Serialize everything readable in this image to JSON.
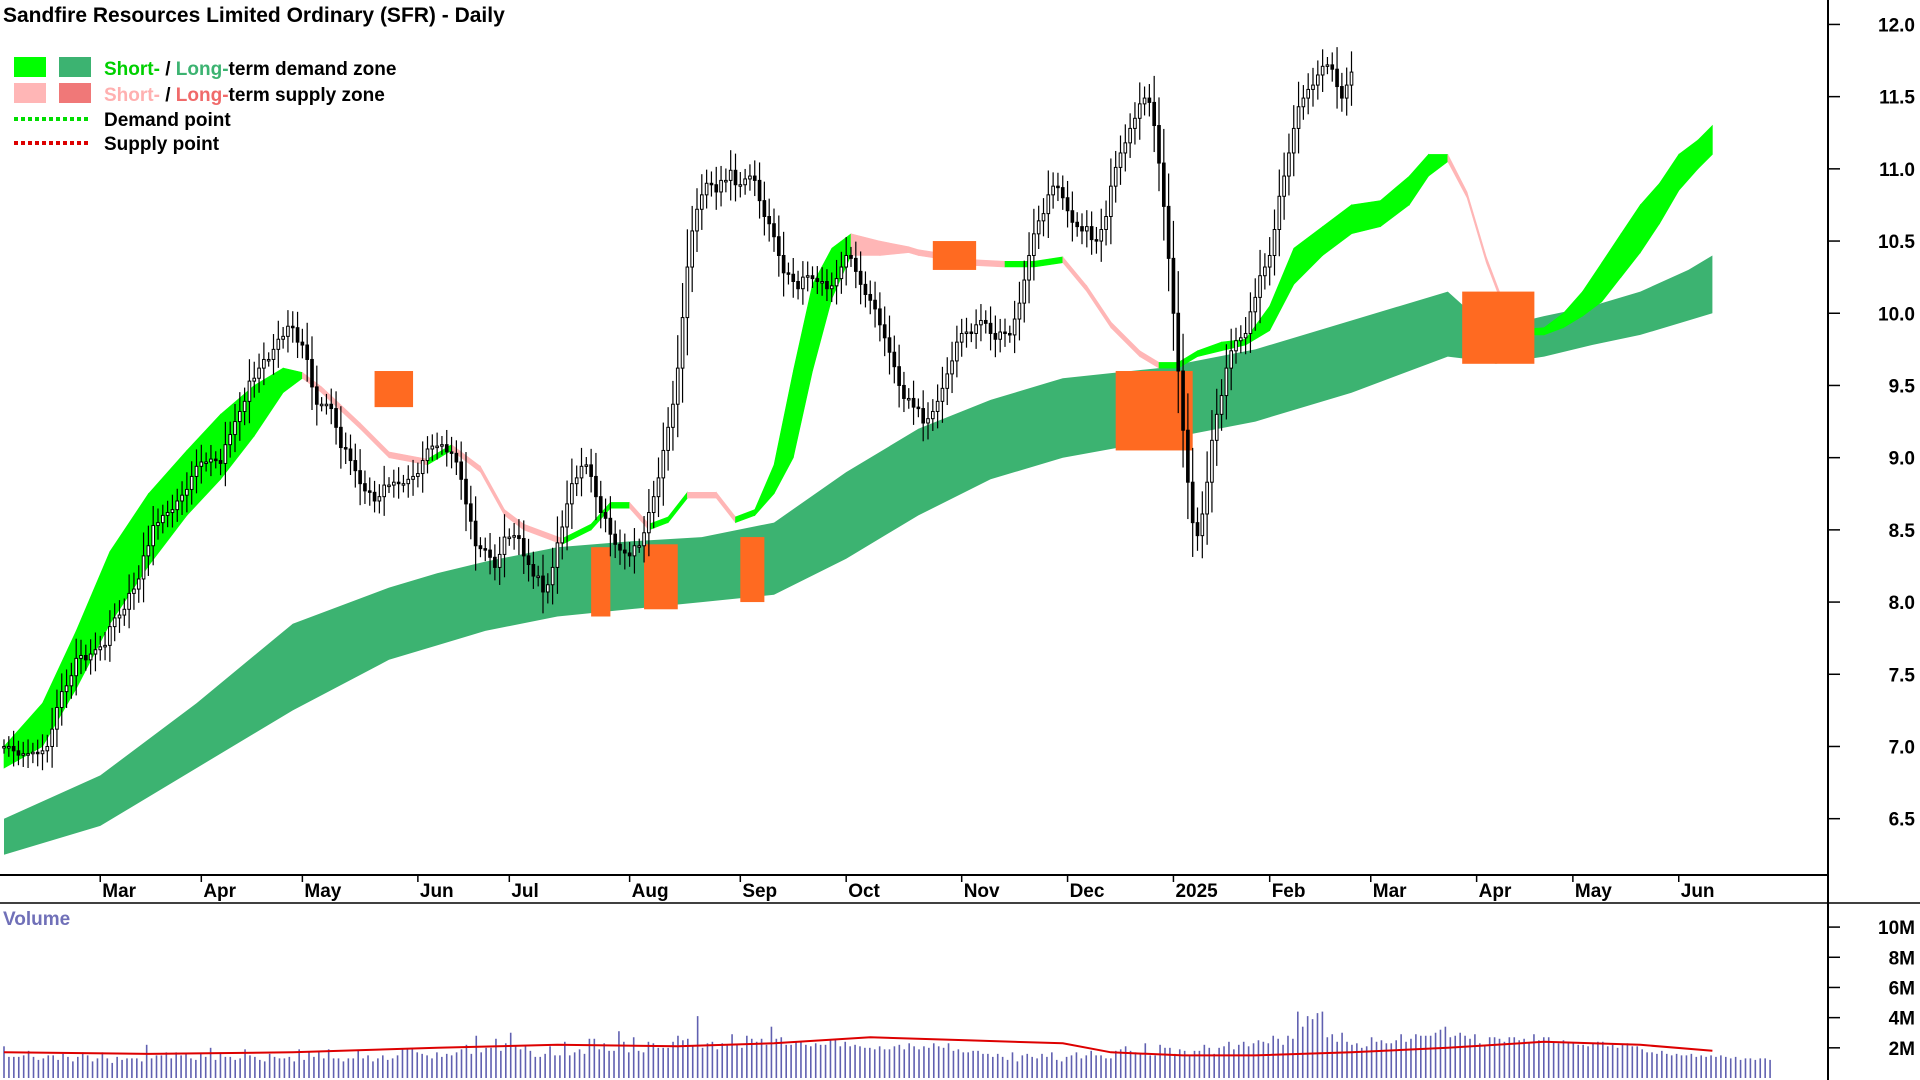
{
  "chart_data": {
    "type": "candlestick",
    "title": "Sandfire Resources Limited Ordinary (SFR) - Daily",
    "price_axis": {
      "ylim": [
        6.2,
        12.1
      ],
      "ticks": [
        "6.5",
        "7.0",
        "7.5",
        "8.0",
        "8.5",
        "9.0",
        "9.5",
        "10.0",
        "10.5",
        "11.0",
        "11.5",
        "12.0"
      ]
    },
    "x_axis": {
      "xlim": [
        0,
        368
      ],
      "month_labels": [
        "Mar",
        "Apr",
        "May",
        "Jun",
        "Jul",
        "Aug",
        "Sep",
        "Oct",
        "Nov",
        "Dec",
        "2025",
        "Feb",
        "Mar",
        "Apr",
        "May",
        "Jun"
      ],
      "month_positions": [
        20,
        41,
        62,
        86,
        105,
        130,
        153,
        175,
        199,
        221,
        243,
        263,
        284,
        306,
        326,
        348
      ]
    },
    "legend": {
      "position": "top-left",
      "demand_label": [
        "Short-",
        " / ",
        "Long-",
        "term demand zone"
      ],
      "supply_label": [
        "Short-",
        " / ",
        "Long-",
        "term supply zone"
      ],
      "demand_point": "Demand point",
      "supply_point": "Supply point"
    },
    "colors": {
      "short_demand": "#00ff00",
      "long_demand": "#3cb371",
      "short_supply": "#ffb6b6",
      "long_supply": "#f07878",
      "overlap": "#ff6a21",
      "demand_point": "#00dd00",
      "supply_point": "#dd0000",
      "volume_bar": "#6060b0",
      "volume_avg": "#dd0000"
    },
    "short_term_zone": {
      "x": [
        0,
        8,
        15,
        22,
        30,
        38,
        45,
        52,
        58,
        62,
        66,
        74,
        80,
        88,
        93,
        99,
        104,
        108,
        116,
        122,
        126,
        130,
        134,
        138,
        142,
        148,
        152,
        156,
        160,
        164,
        168,
        172,
        176,
        182,
        188,
        190,
        194,
        198,
        202,
        208,
        214,
        220,
        225,
        230,
        236,
        240,
        244,
        248,
        253,
        258,
        263,
        268,
        274,
        280,
        286,
        292,
        296,
        300,
        304,
        308,
        312,
        316,
        320,
        324,
        328,
        332,
        336,
        340,
        344,
        348,
        352,
        355
      ],
      "upper": [
        7.0,
        7.3,
        7.8,
        8.35,
        8.75,
        9.05,
        9.3,
        9.5,
        9.62,
        9.55,
        9.45,
        9.2,
        9.0,
        8.95,
        9.05,
        8.9,
        8.6,
        8.5,
        8.4,
        8.5,
        8.65,
        8.65,
        8.5,
        8.55,
        8.75,
        8.72,
        8.55,
        8.6,
        8.95,
        9.6,
        10.2,
        10.45,
        10.55,
        10.5,
        10.45,
        10.42,
        10.4,
        10.36,
        10.33,
        10.32,
        10.32,
        10.35,
        10.15,
        9.9,
        9.7,
        9.62,
        9.62,
        9.72,
        9.8,
        9.8,
        10.05,
        10.45,
        10.6,
        10.75,
        10.78,
        10.95,
        11.1,
        11.1,
        10.8,
        10.35,
        10.0,
        9.85,
        9.9,
        10.0,
        10.15,
        10.35,
        10.55,
        10.75,
        10.9,
        11.1,
        11.2,
        11.3
      ],
      "lower": [
        6.85,
        7.0,
        7.4,
        7.85,
        8.25,
        8.6,
        8.85,
        9.15,
        9.45,
        9.55,
        9.45,
        9.2,
        9.0,
        8.95,
        9.05,
        8.9,
        8.6,
        8.5,
        8.4,
        8.5,
        8.65,
        8.65,
        8.5,
        8.55,
        8.72,
        8.72,
        8.55,
        8.6,
        8.75,
        9.0,
        9.6,
        10.1,
        10.4,
        10.4,
        10.42,
        10.4,
        10.38,
        10.35,
        10.33,
        10.32,
        10.32,
        10.35,
        10.15,
        9.9,
        9.7,
        9.62,
        9.62,
        9.7,
        9.74,
        9.78,
        9.88,
        10.2,
        10.4,
        10.55,
        10.6,
        10.75,
        10.95,
        11.05,
        10.8,
        10.35,
        10.0,
        9.85,
        9.85,
        9.9,
        9.98,
        10.08,
        10.25,
        10.42,
        10.62,
        10.85,
        11.0,
        11.1
      ]
    },
    "long_term_zone": {
      "x": [
        0,
        20,
        40,
        60,
        80,
        90,
        100,
        115,
        130,
        145,
        160,
        175,
        190,
        205,
        220,
        240,
        260,
        280,
        300,
        305,
        310,
        320,
        330,
        340,
        350,
        355
      ],
      "upper": [
        6.5,
        6.8,
        7.3,
        7.85,
        8.1,
        8.2,
        8.28,
        8.38,
        8.42,
        8.45,
        8.55,
        8.9,
        9.2,
        9.4,
        9.55,
        9.62,
        9.75,
        9.95,
        10.15,
        10.0,
        9.9,
        9.98,
        10.05,
        10.15,
        10.3,
        10.4
      ],
      "lower": [
        6.25,
        6.45,
        6.85,
        7.25,
        7.6,
        7.7,
        7.8,
        7.9,
        7.95,
        8.0,
        8.05,
        8.3,
        8.6,
        8.85,
        9.0,
        9.12,
        9.25,
        9.45,
        9.7,
        9.68,
        9.65,
        9.7,
        9.78,
        9.85,
        9.95,
        10.0
      ]
    },
    "overlap_zones": [
      {
        "x": [
          122,
          126
        ],
        "lower": 7.9,
        "upper": 8.38
      },
      {
        "x": [
          133,
          140
        ],
        "lower": 7.95,
        "upper": 8.4
      },
      {
        "x": [
          153,
          158
        ],
        "lower": 8.0,
        "upper": 8.45
      },
      {
        "x": [
          231,
          247
        ],
        "lower": 9.05,
        "upper": 9.6
      },
      {
        "x": [
          303,
          318
        ],
        "lower": 9.65,
        "upper": 10.15
      },
      {
        "x": [
          77,
          85
        ],
        "lower": 9.35,
        "upper": 9.6
      },
      {
        "x": [
          193,
          202
        ],
        "lower": 10.3,
        "upper": 10.5
      }
    ],
    "series": [
      {
        "name": "price",
        "values": [
          7.0,
          7.0,
          6.97,
          6.94,
          6.95,
          6.95,
          6.96,
          6.95,
          6.97,
          7.0,
          7.12,
          7.27,
          7.38,
          7.42,
          7.49,
          7.61,
          7.63,
          7.6,
          7.64,
          7.67,
          7.69,
          7.7,
          7.83,
          7.89,
          7.91,
          7.95,
          8.06,
          8.09,
          8.16,
          8.32,
          8.39,
          8.53,
          8.55,
          8.6,
          8.62,
          8.64,
          8.7,
          8.74,
          8.78,
          8.87,
          8.94,
          8.97,
          8.97,
          8.99,
          8.98,
          8.96,
          9.09,
          9.16,
          9.25,
          9.32,
          9.39,
          9.53,
          9.55,
          9.62,
          9.68,
          9.68,
          9.75,
          9.82,
          9.84,
          9.91,
          9.9,
          9.8,
          9.78,
          9.68,
          9.49,
          9.37,
          9.37,
          9.37,
          9.34,
          9.21,
          9.07,
          9.06,
          8.98,
          8.91,
          8.82,
          8.77,
          8.76,
          8.7,
          8.73,
          8.81,
          8.81,
          8.83,
          8.82,
          8.82,
          8.85,
          8.87,
          8.89,
          8.98,
          9.06,
          9.08,
          9.08,
          9.09,
          9.04,
          9.03,
          8.97,
          8.85,
          8.68,
          8.56,
          8.39,
          8.37,
          8.36,
          8.31,
          8.24,
          8.33,
          8.45,
          8.45,
          8.46,
          8.44,
          8.32,
          8.26,
          8.18,
          8.18,
          8.07,
          8.12,
          8.24,
          8.41,
          8.52,
          8.68,
          8.82,
          8.86,
          8.94,
          8.95,
          8.87,
          8.73,
          8.62,
          8.58,
          8.47,
          8.4,
          8.36,
          8.34,
          8.32,
          8.39,
          8.39,
          8.48,
          8.62,
          8.73,
          8.86,
          9.05,
          9.21,
          9.37,
          9.62,
          9.97,
          10.32,
          10.57,
          10.72,
          10.82,
          10.9,
          10.89,
          10.84,
          10.92,
          10.92,
          10.99,
          10.89,
          10.89,
          10.93,
          10.95,
          10.92,
          10.78,
          10.67,
          10.62,
          10.53,
          10.4,
          10.28,
          10.27,
          10.22,
          10.17,
          10.25,
          10.26,
          10.24,
          10.22,
          10.22,
          10.17,
          10.19,
          10.24,
          10.32,
          10.4,
          10.38,
          10.29,
          10.2,
          10.13,
          10.09,
          10.03,
          9.92,
          9.83,
          9.73,
          9.63,
          9.5,
          9.41,
          9.41,
          9.35,
          9.34,
          9.24,
          9.27,
          9.32,
          9.39,
          9.48,
          9.58,
          9.67,
          9.8,
          9.86,
          9.87,
          9.86,
          9.92,
          9.95,
          9.93,
          9.86,
          9.82,
          9.87,
          9.86,
          9.85,
          9.96,
          10.07,
          10.23,
          10.4,
          10.55,
          10.64,
          10.69,
          10.82,
          10.88,
          10.87,
          10.8,
          10.71,
          10.63,
          10.6,
          10.57,
          10.6,
          10.51,
          10.5,
          10.58,
          10.67,
          10.88,
          11.01,
          11.11,
          11.18,
          11.28,
          11.35,
          11.45,
          11.49,
          11.46,
          11.3,
          11.04,
          10.74,
          10.38,
          10.0,
          9.6,
          9.19,
          8.83,
          8.55,
          8.46,
          8.61,
          8.83,
          9.12,
          9.3,
          9.43,
          9.62,
          9.74,
          9.81,
          9.83,
          9.86,
          10.01,
          10.11,
          10.26,
          10.32,
          10.4,
          10.58,
          10.81,
          10.95,
          11.11,
          11.28,
          11.43,
          11.49,
          11.55,
          11.58,
          11.65,
          11.71,
          11.72,
          11.69,
          11.57,
          11.49,
          11.58,
          11.67
        ]
      },
      {
        "name": "volume",
        "values": [
          2.1,
          1.4,
          1.4,
          1.4,
          1.5,
          1.8,
          1.4,
          1.2,
          1.3,
          1.5,
          1.5,
          1.2,
          1.6,
          1.4,
          1.1,
          1.4,
          1.7,
          1.5,
          1.1,
          1.3,
          1.7,
          1.3,
          1.0,
          1.4,
          1.2,
          1.3,
          1.3,
          1.3,
          1.1,
          2.2,
          1.3,
          1.5,
          1.5,
          1.7,
          1.3,
          1.7,
          1.5,
          1.6,
          1.3,
          1.2,
          1.6,
          1.4,
          2.0,
          1.2,
          1.6,
          1.4,
          1.4,
          1.2,
          1.3,
          1.9,
          1.5,
          1.4,
          1.2,
          1.1,
          1.6,
          1.4,
          1.3,
          1.3,
          1.4,
          1.1,
          1.9,
          1.2,
          1.7,
          1.4,
          1.7,
          1.3,
          1.9,
          1.3,
          1.3,
          1.1,
          1.3,
          1.3,
          1.8,
          1.3,
          1.5,
          1.1,
          1.3,
          1.5,
          1.2,
          1.3,
          1.5,
          1.9,
          1.9,
          1.9,
          1.7,
          1.6,
          1.5,
          1.3,
          1.7,
          1.4,
          1.6,
          1.5,
          1.7,
          1.9,
          2.2,
          1.6,
          2.8,
          1.7,
          2.0,
          2.0,
          2.6,
          1.8,
          2.3,
          3.0,
          2.1,
          1.9,
          2.1,
          1.8,
          1.4,
          1.4,
          1.6,
          2.1,
          1.5,
          1.5,
          2.4,
          1.5,
          1.7,
          1.9,
          1.6,
          2.6,
          2.6,
          1.9,
          2.3,
          1.8,
          1.8,
          3.1,
          2.4,
          1.7,
          2.7,
          1.8,
          1.7,
          2.4,
          2.3,
          2.0,
          2.0,
          2.0,
          2.4,
          2.8,
          2.5,
          2.6,
          2.1,
          4.1,
          2.0,
          2.3,
          2.4,
          1.9,
          2.3,
          2.2,
          2.9,
          2.2,
          2.0,
          2.8,
          2.6,
          2.4,
          2.6,
          2.2,
          3.4,
          2.6,
          2.7,
          2.2,
          2.2,
          2.4,
          2.4,
          2.2,
          2.1,
          2.3,
          2.2,
          2.2,
          2.5,
          2.6,
          2.1,
          2.4,
          2.1,
          2.2,
          2.1,
          2.0,
          2.0,
          1.9,
          2.1,
          1.9,
          1.9,
          2.1,
          2.2,
          1.9,
          2.3,
          2.1,
          1.9,
          2.1,
          2.0,
          2.3,
          2.1,
          2.0,
          2.3,
          1.8,
          1.9,
          1.7,
          1.7,
          1.8,
          1.8,
          1.6,
          1.6,
          1.4,
          1.6,
          1.4,
          1.2,
          1.7,
          1.1,
          1.5,
          1.6,
          1.4,
          1.3,
          1.6,
          1.4,
          1.7,
          1.2,
          1.1,
          1.4,
          1.5,
          1.7,
          1.3,
          1.5,
          1.8,
          1.5,
          1.5,
          1.3,
          1.3,
          1.8,
          1.9,
          2.1,
          1.8,
          1.7,
          1.6,
          2.3,
          1.5,
          1.5,
          2.2,
          2.0,
          2.0,
          1.6,
          1.9,
          1.8,
          1.5,
          1.8,
          1.8,
          2.2,
          2.0,
          1.6,
          2.0,
          2.1,
          2.4,
          1.9,
          2.2,
          2.4,
          2.1,
          2.3,
          2.5,
          2.4,
          2.3,
          2.8,
          2.6,
          2.2,
          2.8,
          2.6,
          4.4,
          3.4,
          4.1,
          3.9,
          4.3,
          4.4,
          2.7,
          2.9,
          2.4,
          3.0,
          2.4,
          2.2,
          2.3,
          2.0,
          2.1,
          2.7,
          2.4,
          2.5,
          2.3,
          2.3,
          2.5,
          2.9,
          2.4,
          2.6,
          2.9,
          2.8,
          2.8,
          2.8,
          3.0,
          3.2,
          3.4,
          2.7,
          2.8,
          3.0,
          2.8,
          2.6,
          2.9,
          2.3,
          2.2,
          2.7,
          2.7,
          2.6,
          2.4,
          2.7,
          2.7,
          2.5,
          2.6,
          2.3,
          2.9,
          2.5,
          2.7,
          2.7,
          2.4,
          2.3,
          2.5,
          2.4,
          2.3,
          2.2,
          2.2,
          2.1,
          2.3,
          2.4,
          2.4,
          2.1,
          2.2,
          2.0,
          2.2,
          2.3,
          2.1,
          2.1,
          1.9,
          1.7,
          1.7,
          1.6,
          1.8,
          1.6,
          1.5,
          1.6,
          1.5,
          1.5,
          1.6,
          1.4,
          1.5,
          1.4,
          1.5,
          1.4,
          1.5,
          1.4,
          1.3,
          1.4,
          1.2,
          1.3,
          1.3,
          1.2,
          1.3,
          1.3,
          1.2
        ]
      },
      {
        "name": "volume_avg",
        "x": [
          0,
          30,
          60,
          90,
          115,
          140,
          160,
          180,
          200,
          220,
          230,
          245,
          260,
          280,
          300,
          320,
          340,
          355
        ],
        "values": [
          1.7,
          1.6,
          1.7,
          2.0,
          2.2,
          2.1,
          2.3,
          2.7,
          2.5,
          2.3,
          1.7,
          1.5,
          1.5,
          1.7,
          2.0,
          2.4,
          2.2,
          1.8
        ]
      }
    ],
    "volume_axis": {
      "title": "Volume",
      "ylim": [
        0,
        11
      ],
      "ticks": [
        "10M",
        "8M",
        "6M",
        "4M",
        "2M"
      ]
    },
    "grid": false
  }
}
